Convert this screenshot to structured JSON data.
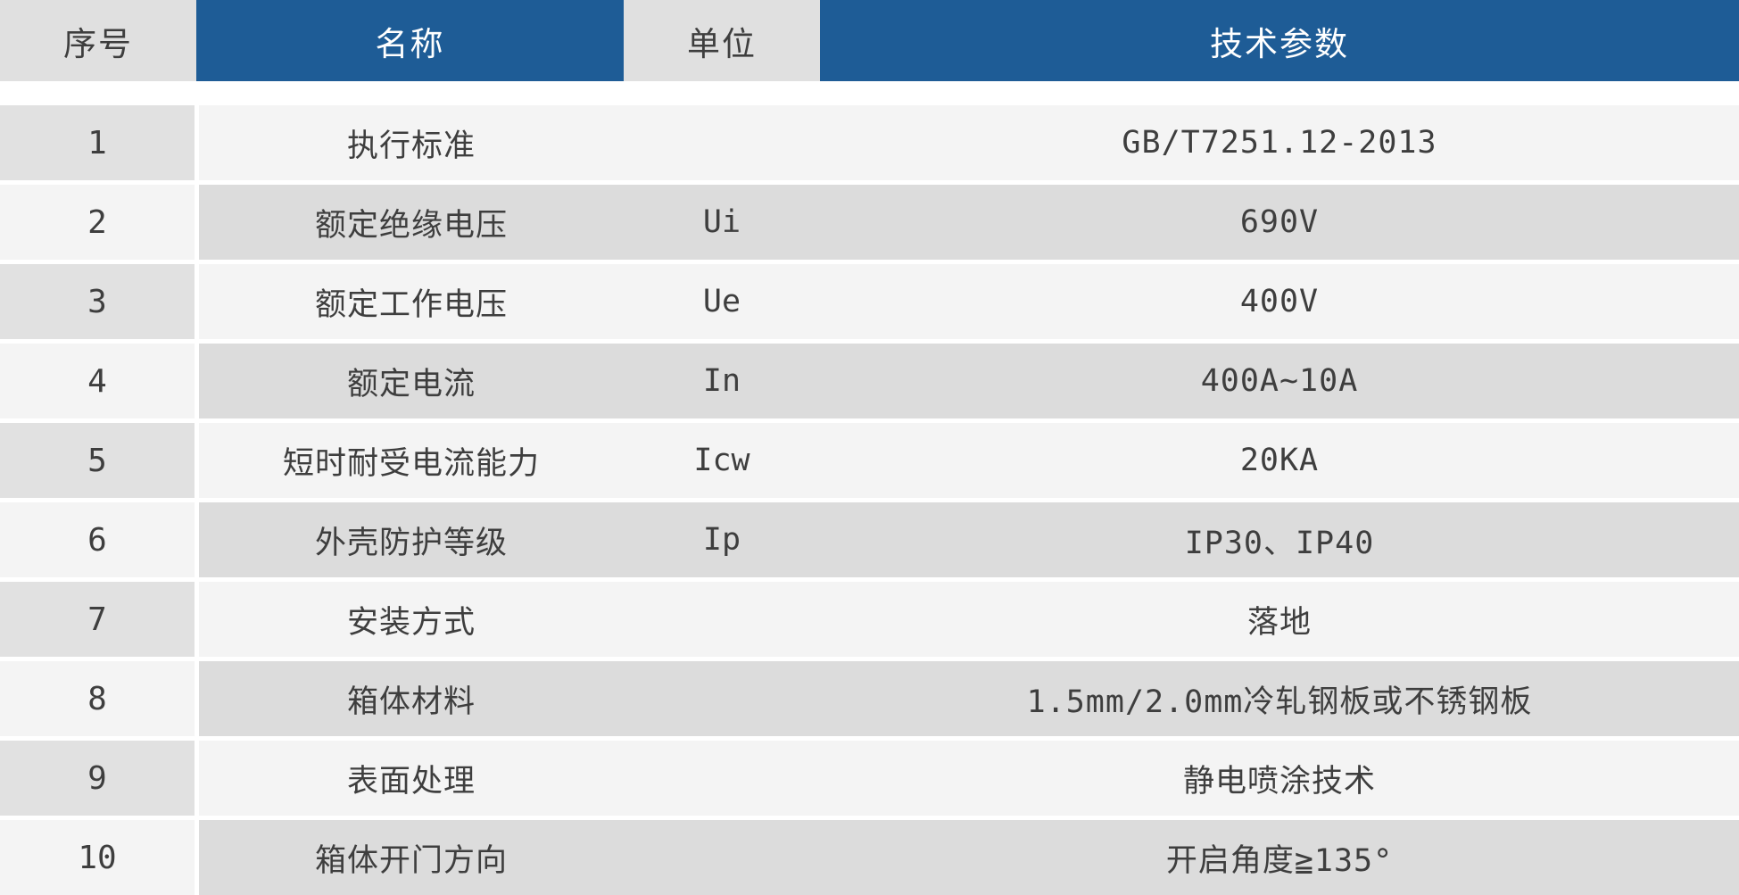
{
  "colors": {
    "blue": "#1e5c96",
    "gray_header": "#e0e0e0",
    "gray_serial": "#e1e1e1",
    "gray_band": "#dcdcdc",
    "gray_light": "#f4f4f4",
    "text": "#3e3e3e"
  },
  "table": {
    "headers": [
      {
        "label": "序号"
      },
      {
        "label": "名称"
      },
      {
        "label": "单位"
      },
      {
        "label": "技术参数"
      }
    ],
    "rows": [
      {
        "no": "1",
        "name": "执行标准",
        "unit": "",
        "value": "GB/T7251.12-2013"
      },
      {
        "no": "2",
        "name": "额定绝缘电压",
        "unit": "Ui",
        "value": "690V"
      },
      {
        "no": "3",
        "name": "额定工作电压",
        "unit": "Ue",
        "value": "400V"
      },
      {
        "no": "4",
        "name": "额定电流",
        "unit": "In",
        "value": "400A~10A"
      },
      {
        "no": "5",
        "name": "短时耐受电流能力",
        "unit": "Icw",
        "value": "20KA"
      },
      {
        "no": "6",
        "name": "外壳防护等级",
        "unit": "Ip",
        "value": "IP30、IP40"
      },
      {
        "no": "7",
        "name": "安装方式",
        "unit": "",
        "value": "落地"
      },
      {
        "no": "8",
        "name": "箱体材料",
        "unit": "",
        "value": "1.5mm/2.0mm冷轧钢板或不锈钢板"
      },
      {
        "no": "9",
        "name": "表面处理",
        "unit": "",
        "value": "静电喷涂技术"
      },
      {
        "no": "10",
        "name": "箱体开门方向",
        "unit": "",
        "value": "开启角度≧135°"
      }
    ]
  }
}
